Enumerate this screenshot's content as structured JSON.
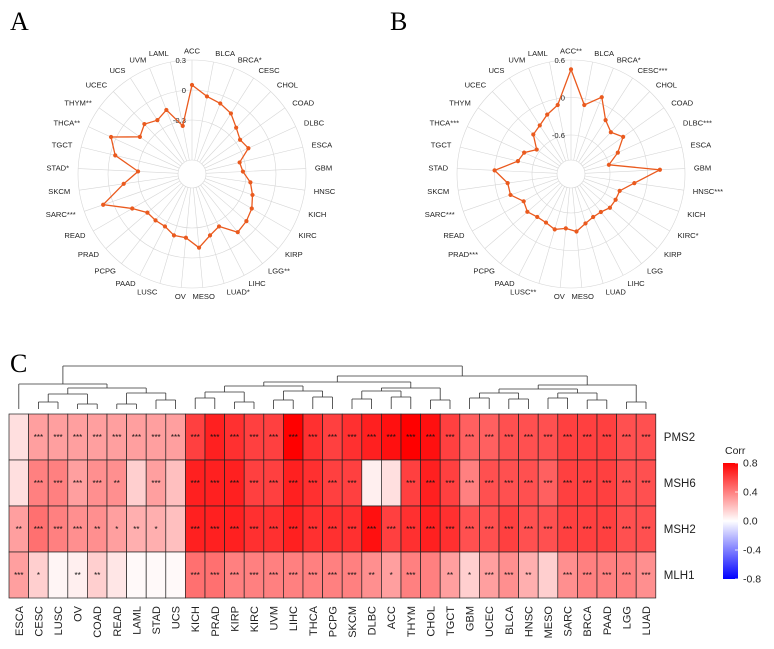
{
  "colors": {
    "radar_line": "#ea5a1e",
    "grid": "#d6d6d6",
    "heat_high": "#ff0000",
    "heat_mid": "#ffffff",
    "heat_low": "#0000ff"
  },
  "panel_labels": [
    "A",
    "B",
    "C"
  ],
  "chart_data": [
    {
      "type": "radar",
      "panel": "A",
      "rlim": [
        -0.7,
        0.3
      ],
      "radial_ticks": [
        "0.3",
        "0",
        "-0.3"
      ],
      "radial_tick_values": [
        0.3,
        0,
        -0.3
      ],
      "categories": [
        "ACC",
        "BLCA",
        "BRCA*",
        "CESC",
        "CHOL",
        "COAD",
        "DLBC",
        "ESCA",
        "GBM",
        "HNSC",
        "KICH",
        "KIRC",
        "KIRP",
        "LGG**",
        "LIHC",
        "LUAD*",
        "MESO",
        "OV",
        "LUSC",
        "PAAD",
        "PCPG",
        "PRAD",
        "READ",
        "SARC***",
        "SKCM",
        "STAD*",
        "TGCT",
        "THCA**",
        "THYM**",
        "UCEC",
        "UCS",
        "UVM",
        "LAML"
      ],
      "values": [
        0.05,
        -0.05,
        -0.08,
        -0.12,
        -0.2,
        -0.25,
        -0.22,
        -0.35,
        -0.33,
        -0.25,
        -0.2,
        -0.15,
        -0.12,
        -0.1,
        -0.25,
        -0.2,
        -0.1,
        -0.2,
        -0.2,
        -0.25,
        -0.25,
        -0.25,
        -0.15,
        0.1,
        -0.15,
        -0.3,
        -0.05,
        0.05,
        -0.2,
        -0.15,
        -0.2,
        -0.15,
        -0.35
      ]
    },
    {
      "type": "radar",
      "panel": "B",
      "rlim": [
        -1.0,
        0.6
      ],
      "radial_ticks": [
        "0.6",
        "0",
        "-0.6"
      ],
      "radial_tick_values": [
        0.6,
        0,
        -0.6
      ],
      "categories": [
        "ACC**",
        "BLCA",
        "BRCA*",
        "CESC***",
        "CHOL",
        "COAD",
        "DLBC***",
        "ESCA",
        "GBM",
        "HNSC***",
        "KICH",
        "KIRC*",
        "KIRP",
        "LGG",
        "LIHC",
        "LUAD",
        "MESO",
        "OV",
        "LUSC**",
        "PAAD",
        "PCPG",
        "PRAD***",
        "READ",
        "SARC***",
        "SKCM",
        "STAD",
        "TGCT",
        "THCA***",
        "THYM",
        "UCEC",
        "UCS",
        "UVM",
        "LAML"
      ],
      "values": [
        0.45,
        -0.1,
        0.1,
        -0.2,
        -0.3,
        -0.2,
        -0.4,
        -0.6,
        0.2,
        -0.2,
        -0.4,
        -0.4,
        -0.4,
        -0.45,
        -0.45,
        -0.4,
        -0.3,
        -0.35,
        -0.3,
        -0.35,
        -0.35,
        -0.3,
        -0.35,
        -0.2,
        -0.2,
        0.0,
        -0.35,
        -0.4,
        -0.55,
        -0.35,
        -0.3,
        -0.2,
        -0.1
      ]
    },
    {
      "type": "heatmap",
      "panel": "C",
      "rows": [
        "PMS2",
        "MSH6",
        "MSH2",
        "MLH1"
      ],
      "columns": [
        "ESCA",
        "CESC",
        "LUSC",
        "OV",
        "COAD",
        "READ",
        "LAML",
        "STAD",
        "UCS",
        "KICH",
        "PRAD",
        "KIRP",
        "KIRC",
        "UVM",
        "LIHC",
        "THCA",
        "PCPG",
        "SKCM",
        "DLBC",
        "ACC",
        "THYM",
        "CHOL",
        "TGCT",
        "GBM",
        "UCEC",
        "BLCA",
        "HNSC",
        "MESO",
        "SARC",
        "BRCA",
        "PAAD",
        "LGG",
        "LUAD"
      ],
      "values": [
        [
          0.1,
          0.3,
          0.3,
          0.3,
          0.3,
          0.3,
          0.3,
          0.3,
          0.3,
          0.6,
          0.7,
          0.65,
          0.6,
          0.6,
          0.9,
          0.65,
          0.6,
          0.65,
          0.7,
          0.75,
          0.85,
          0.75,
          0.6,
          0.5,
          0.5,
          0.55,
          0.55,
          0.55,
          0.6,
          0.6,
          0.6,
          0.55,
          0.55
        ],
        [
          0.1,
          0.4,
          0.4,
          0.3,
          0.35,
          0.35,
          0.15,
          0.3,
          0.2,
          0.7,
          0.7,
          0.7,
          0.6,
          0.6,
          0.7,
          0.65,
          0.6,
          0.6,
          0.05,
          0.1,
          0.6,
          0.7,
          0.6,
          0.4,
          0.55,
          0.55,
          0.55,
          0.5,
          0.6,
          0.6,
          0.6,
          0.55,
          0.55
        ],
        [
          0.3,
          0.45,
          0.4,
          0.35,
          0.35,
          0.3,
          0.25,
          0.25,
          0.2,
          0.7,
          0.7,
          0.7,
          0.65,
          0.65,
          0.7,
          0.65,
          0.65,
          0.65,
          0.75,
          0.6,
          0.65,
          0.7,
          0.65,
          0.55,
          0.55,
          0.6,
          0.55,
          0.55,
          0.6,
          0.6,
          0.6,
          0.55,
          0.55
        ],
        [
          0.3,
          0.15,
          0.03,
          0.05,
          0.15,
          0.08,
          0.02,
          0.02,
          0.02,
          0.45,
          0.45,
          0.4,
          0.4,
          0.4,
          0.4,
          0.4,
          0.4,
          0.4,
          0.35,
          0.3,
          0.4,
          0.4,
          0.3,
          0.15,
          0.3,
          0.35,
          0.25,
          0.15,
          0.35,
          0.4,
          0.4,
          0.4,
          0.35
        ]
      ],
      "significance": [
        [
          "",
          "***",
          "***",
          "***",
          "***",
          "***",
          "***",
          "***",
          "***",
          "***",
          "***",
          "***",
          "***",
          "***",
          "***",
          "***",
          "***",
          "***",
          "***",
          "***",
          "***",
          "***",
          "***",
          "***",
          "***",
          "***",
          "***",
          "***",
          "***",
          "***",
          "***",
          "***",
          "***"
        ],
        [
          "",
          "***",
          "***",
          "***",
          "***",
          "**",
          "",
          "***",
          "",
          "***",
          "***",
          "***",
          "***",
          "***",
          "***",
          "***",
          "***",
          "***",
          "",
          "",
          "***",
          "***",
          "***",
          "***",
          "***",
          "***",
          "***",
          "***",
          "***",
          "***",
          "***",
          "***",
          "***"
        ],
        [
          "**",
          "***",
          "***",
          "***",
          "**",
          "*",
          "**",
          "*",
          "",
          "***",
          "***",
          "***",
          "***",
          "***",
          "***",
          "***",
          "***",
          "***",
          "***",
          "***",
          "***",
          "***",
          "***",
          "***",
          "***",
          "***",
          "***",
          "***",
          "***",
          "***",
          "***",
          "***",
          "***"
        ],
        [
          "***",
          "*",
          "",
          "**",
          "**",
          "",
          "",
          "",
          "",
          "***",
          "***",
          "***",
          "***",
          "***",
          "***",
          "***",
          "***",
          "***",
          "**",
          "*",
          "***",
          "",
          "**",
          "*",
          "***",
          "***",
          "**",
          "",
          "***",
          "***",
          "***",
          "***",
          "***"
        ]
      ],
      "legend": {
        "title": "Corr",
        "ticks": [
          0.8,
          0.4,
          0.0,
          -0.4,
          -0.8
        ],
        "tick_labels": [
          "0.8",
          "0.4",
          "0.0",
          "-0.4",
          "-0.8"
        ],
        "range": [
          -0.8,
          0.8
        ]
      }
    }
  ]
}
